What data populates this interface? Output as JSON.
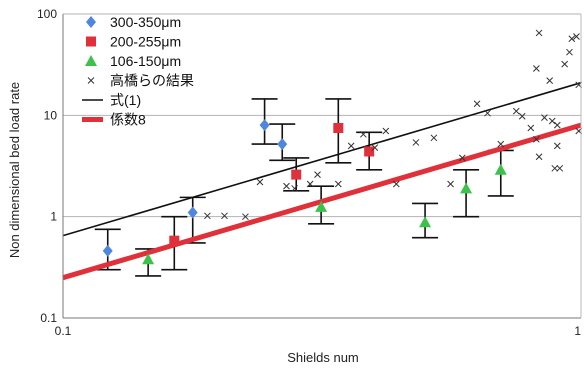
{
  "chart_data": {
    "type": "scatter",
    "title": "",
    "xlabel": "Shields num",
    "ylabel": "Non dimensional bed load rate",
    "x_scale": "log",
    "y_scale": "log",
    "xlim": [
      0.1,
      1
    ],
    "ylim": [
      0.1,
      100
    ],
    "x_ticks": [
      "0.1",
      "1"
    ],
    "y_ticks": [
      "0.1",
      "1",
      "10",
      "100"
    ],
    "grid": "horizontal",
    "legend_position": "top-left",
    "series": [
      {
        "name": "300-350μm",
        "marker": "diamond",
        "color": "#4f86e0",
        "points": [
          [
            0.122,
            0.46
          ],
          [
            0.178,
            1.1
          ],
          [
            0.245,
            8.0
          ],
          [
            0.265,
            5.2
          ]
        ],
        "error": [
          [
            0.3,
            0.75
          ],
          [
            0.55,
            1.55
          ],
          [
            5.2,
            14.5
          ],
          [
            3.6,
            8.2
          ]
        ]
      },
      {
        "name": "200-255μm",
        "marker": "square",
        "color": "#e0303a",
        "points": [
          [
            0.164,
            0.58
          ],
          [
            0.282,
            2.6
          ],
          [
            0.34,
            7.5
          ],
          [
            0.39,
            4.4
          ]
        ],
        "error": [
          [
            0.3,
            1.0
          ],
          [
            1.8,
            3.8
          ],
          [
            3.4,
            14.5
          ],
          [
            2.9,
            6.8
          ]
        ]
      },
      {
        "name": "106-150μm",
        "marker": "triangle",
        "color": "#3cc24a",
        "points": [
          [
            0.146,
            0.38
          ],
          [
            0.315,
            1.25
          ],
          [
            0.5,
            0.88
          ],
          [
            0.6,
            1.9
          ],
          [
            0.7,
            2.9
          ]
        ],
        "error": [
          [
            0.26,
            0.48
          ],
          [
            0.85,
            2.0
          ],
          [
            0.62,
            1.35
          ],
          [
            1.0,
            2.9
          ],
          [
            1.6,
            4.5
          ]
        ]
      },
      {
        "name": "高橋らの結果",
        "marker": "x",
        "color": "#333333",
        "points": [
          [
            0.19,
            1.02
          ],
          [
            0.205,
            1.02
          ],
          [
            0.225,
            1.0
          ],
          [
            0.24,
            2.2
          ],
          [
            0.27,
            2.0
          ],
          [
            0.28,
            1.9
          ],
          [
            0.3,
            2.1
          ],
          [
            0.31,
            2.6
          ],
          [
            0.34,
            2.1
          ],
          [
            0.36,
            5.0
          ],
          [
            0.38,
            6.5
          ],
          [
            0.4,
            4.8
          ],
          [
            0.42,
            7.0
          ],
          [
            0.44,
            2.1
          ],
          [
            0.48,
            5.4
          ],
          [
            0.52,
            6.0
          ],
          [
            0.56,
            2.1
          ],
          [
            0.59,
            3.8
          ],
          [
            0.63,
            13.0
          ],
          [
            0.66,
            10.5
          ],
          [
            0.7,
            5.2
          ],
          [
            0.75,
            11.0
          ],
          [
            0.77,
            9.8
          ],
          [
            0.8,
            7.5
          ],
          [
            0.82,
            29.0
          ],
          [
            0.82,
            5.8
          ],
          [
            0.83,
            3.9
          ],
          [
            0.83,
            65.0
          ],
          [
            0.85,
            9.5
          ],
          [
            0.87,
            22.0
          ],
          [
            0.88,
            8.8
          ],
          [
            0.89,
            3.0
          ],
          [
            0.9,
            8.0
          ],
          [
            0.9,
            5.0
          ],
          [
            0.91,
            3.0
          ],
          [
            0.93,
            32.0
          ],
          [
            0.95,
            42.0
          ],
          [
            0.96,
            57.0
          ],
          [
            0.98,
            60.0
          ],
          [
            0.99,
            7.0
          ],
          [
            0.99,
            20.0
          ]
        ]
      }
    ],
    "lines": [
      {
        "name": "式(1)",
        "color": "#111111",
        "x": [
          0.1,
          1
        ],
        "y": [
          0.65,
          21.0
        ]
      },
      {
        "name": "係数8",
        "color": "#e0303a",
        "x": [
          0.1,
          1
        ],
        "y": [
          0.25,
          8.0
        ]
      }
    ]
  }
}
